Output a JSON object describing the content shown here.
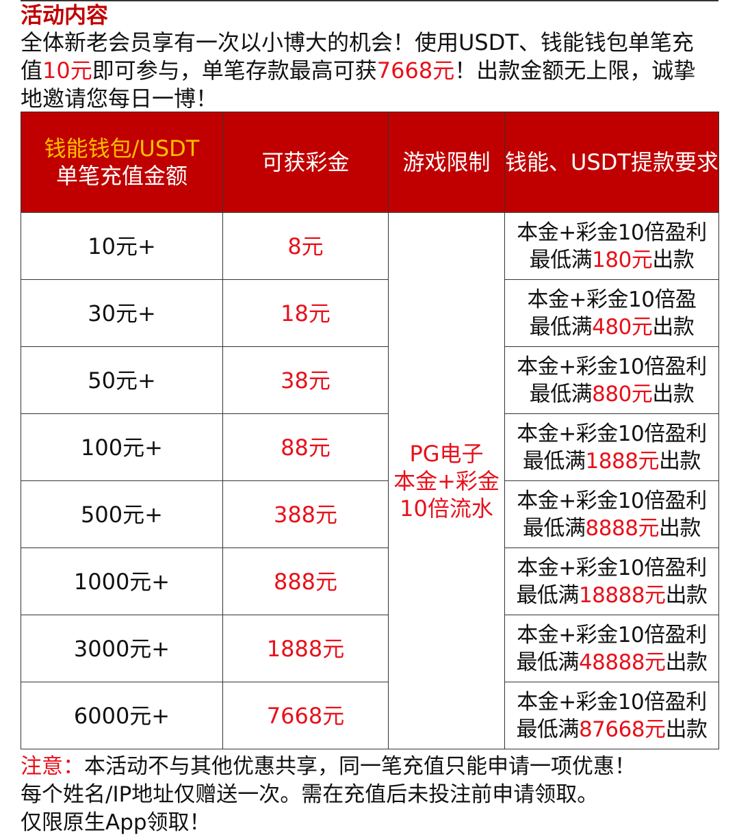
{
  "title": "活动内容",
  "intro": {
    "p1": "全体新老会员享有一次以小博大的机会！使用USDT、钱能钱包单笔充值",
    "min": "10元",
    "p2": "即可参与，单笔存款最高可获",
    "max": "7668元",
    "p3": "！出款金额无上限，诚挚地邀请您每日一博！"
  },
  "table": {
    "headers": {
      "col1_line1": "钱能钱包/USDT",
      "col1_line2": "单笔充值金额",
      "col2": "可获彩金",
      "col3": "游戏限制",
      "col4": "钱能、USDT提款要求"
    },
    "game_limit": {
      "line1": "PG电子",
      "line2": "本金+彩金",
      "line3": "10倍流水"
    },
    "rows": [
      {
        "deposit": "10元+",
        "bonus": "8元",
        "req_line1": "本金+彩金10倍盈利",
        "req_pre": "最低满",
        "req_amt": "180元",
        "req_post": "出款"
      },
      {
        "deposit": "30元+",
        "bonus": "18元",
        "req_line1": "本金+彩金10倍盈",
        "req_pre": "最低满",
        "req_amt": "480元",
        "req_post": "出款"
      },
      {
        "deposit": "50元+",
        "bonus": "38元",
        "req_line1": "本金+彩金10倍盈利",
        "req_pre": "最低满",
        "req_amt": "880元",
        "req_post": "出款"
      },
      {
        "deposit": "100元+",
        "bonus": "88元",
        "req_line1": "本金+彩金10倍盈利",
        "req_pre": "最低满",
        "req_amt": "1888元",
        "req_post": "出款"
      },
      {
        "deposit": "500元+",
        "bonus": "388元",
        "req_line1": "本金+彩金10倍盈利",
        "req_pre": "最低满",
        "req_amt": "8888元",
        "req_post": "出款"
      },
      {
        "deposit": "1000元+",
        "bonus": "888元",
        "req_line1": "本金+彩金10倍盈利",
        "req_pre": "最低满",
        "req_amt": "18888元",
        "req_post": "出款"
      },
      {
        "deposit": "3000元+",
        "bonus": "1888元",
        "req_line1": "本金+彩金10倍盈利",
        "req_pre": "最低满",
        "req_amt": "48888元",
        "req_post": "出款"
      },
      {
        "deposit": "6000元+",
        "bonus": "7668元",
        "req_line1": "本金+彩金10倍盈利",
        "req_pre": "最低满",
        "req_amt": "87668元",
        "req_post": "出款"
      }
    ]
  },
  "notes": {
    "label": "注意：",
    "line1": "本活动不与其他优惠共享，同一笔充值只能申请一项优惠！",
    "line2": "每个姓名/IP地址仅赠送一次。需在充值后未投注前申请领取。",
    "line3": "仅限原生App领取！"
  },
  "colors": {
    "header_bg": "#c00000",
    "header_highlight": "#ffc000",
    "accent_red": "#e8101a"
  }
}
